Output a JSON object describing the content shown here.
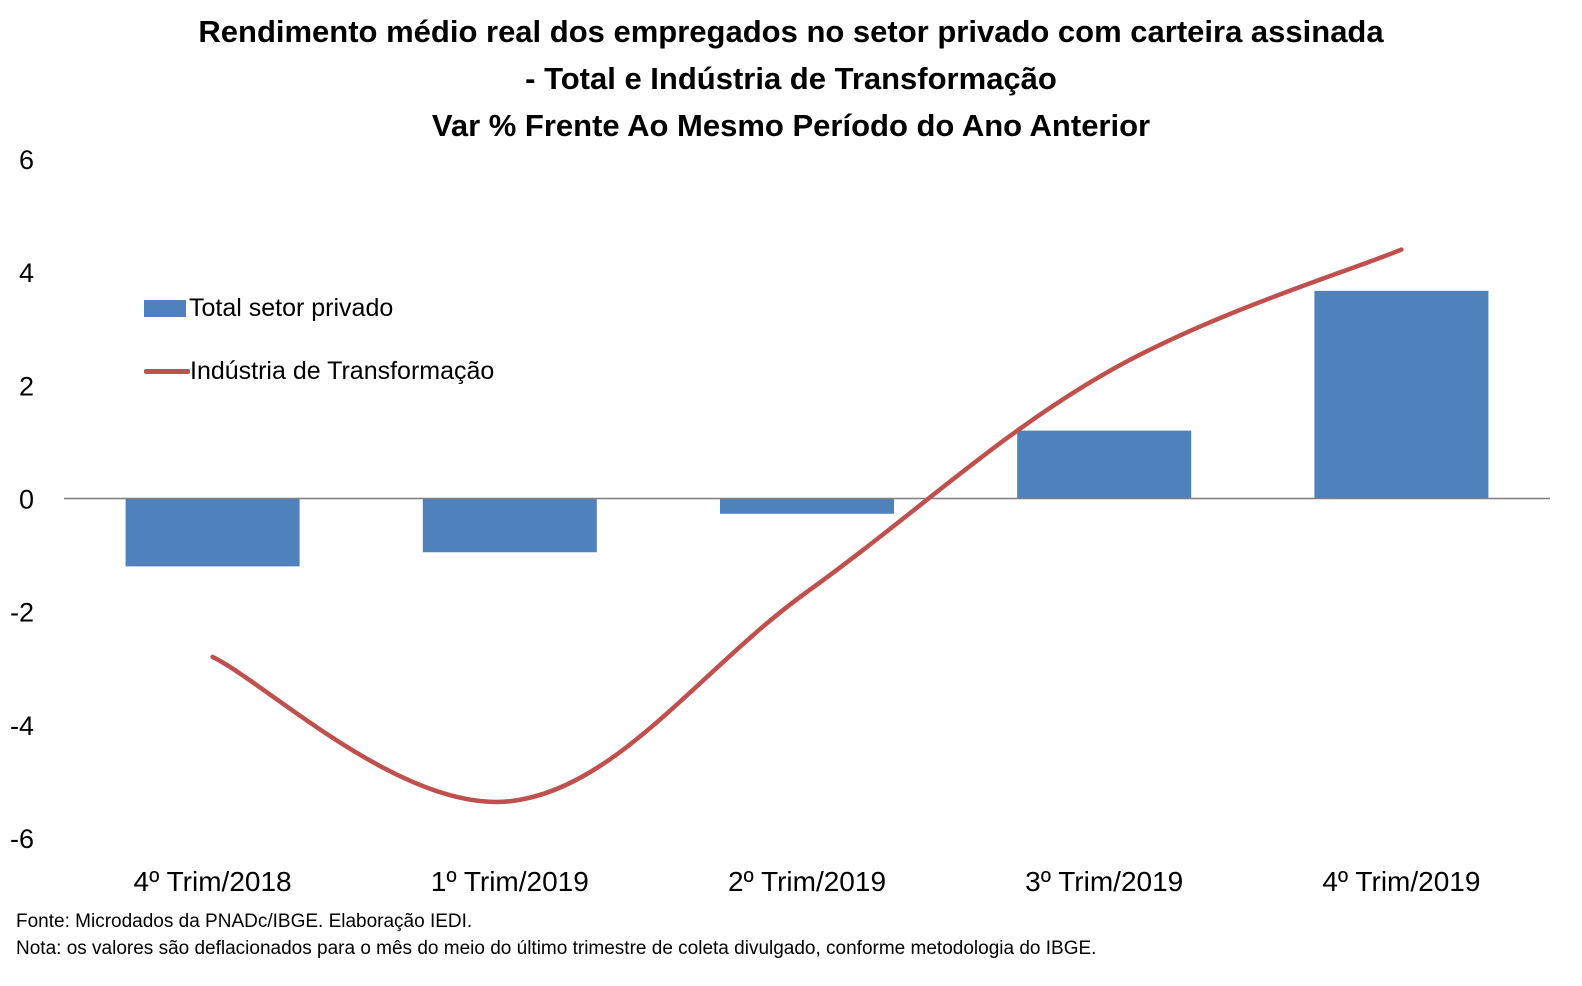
{
  "title_lines": [
    "Rendimento médio real dos empregados no setor privado com carteira assinada",
    "- Total e Indústria de Transformação",
    "Var % Frente Ao Mesmo Período do Ano Anterior"
  ],
  "notes": {
    "source": "Fonte: Microdados da PNADc/IBGE. Elaboração IEDI.",
    "note": "Nota: os valores são deflacionados para o mês do meio do último trimestre de coleta divulgado, conforme metodologia do IBGE."
  },
  "colors": {
    "bar": "#4f81bd",
    "line": "#c0504d",
    "axis": "#7f7f7f"
  },
  "chart_data": {
    "type": "bar",
    "categories": [
      "4º Trim/2018",
      "1º Trim/2019",
      "2º Trim/2019",
      "3º Trim/2019",
      "4º Trim/2019"
    ],
    "series": [
      {
        "name": "Total setor privado",
        "type": "bar",
        "values": [
          -1.2,
          -0.95,
          -0.27,
          1.2,
          3.67
        ]
      },
      {
        "name": "Indústria de Transformação",
        "type": "line",
        "smooth": true,
        "values": [
          -2.8,
          -5.35,
          -1.65,
          2.2,
          4.4
        ]
      }
    ],
    "y_ticks": [
      "6",
      "4",
      "2",
      "0",
      "-2",
      "-4",
      "-6"
    ],
    "ylim": [
      -6,
      6
    ],
    "xlabel": "",
    "ylabel": "",
    "grid": false,
    "legend": "top-left"
  }
}
